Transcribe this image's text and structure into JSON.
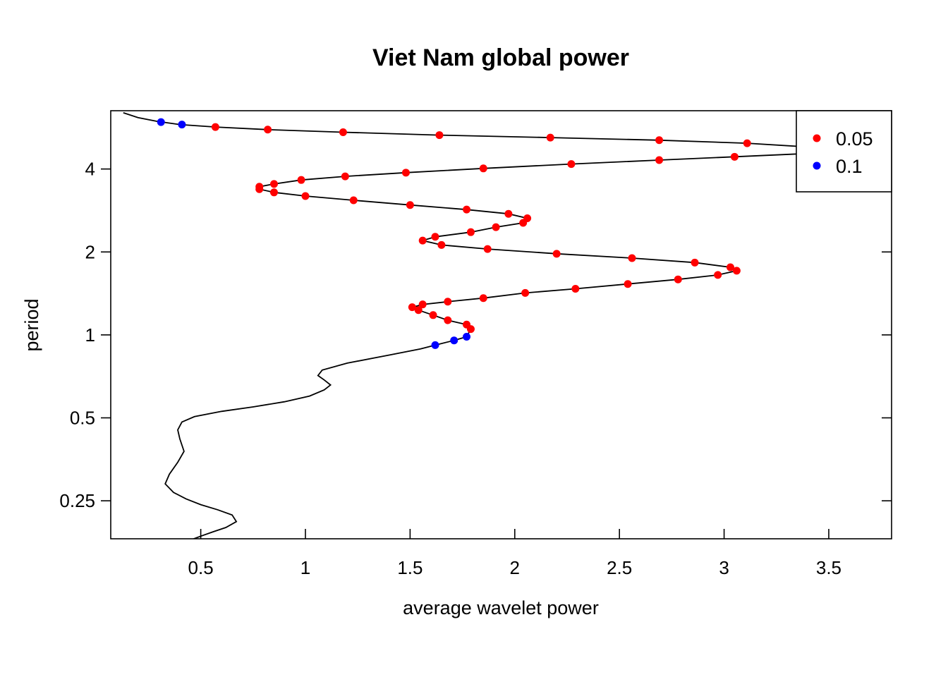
{
  "chart_data": {
    "type": "line",
    "title": "Viet Nam global power",
    "xlabel": "average wavelet power",
    "ylabel": "period",
    "xlim": [
      0.07,
      3.8
    ],
    "ylim": [
      0.182,
      6.51
    ],
    "y_log_scale": true,
    "grid": false,
    "legend_position": "top-right",
    "x_ticks": [
      {
        "value": 0.5,
        "label": "0.5"
      },
      {
        "value": 1,
        "label": "1"
      },
      {
        "value": 1.5,
        "label": "1.5"
      },
      {
        "value": 2,
        "label": "2"
      },
      {
        "value": 2.5,
        "label": "2.5"
      },
      {
        "value": 3,
        "label": "3"
      },
      {
        "value": 3.5,
        "label": "3.5"
      }
    ],
    "y_ticks": [
      {
        "value": 0.25,
        "label": "0.25"
      },
      {
        "value": 0.5,
        "label": "0.5"
      },
      {
        "value": 1,
        "label": "1"
      },
      {
        "value": 2,
        "label": "2"
      },
      {
        "value": 4,
        "label": "4"
      }
    ],
    "line": {
      "color": "#000000",
      "points": [
        [
          0.45,
          0.18
        ],
        [
          0.5,
          0.186
        ],
        [
          0.56,
          0.193
        ],
        [
          0.62,
          0.2
        ],
        [
          0.67,
          0.21
        ],
        [
          0.65,
          0.222
        ],
        [
          0.58,
          0.232
        ],
        [
          0.5,
          0.242
        ],
        [
          0.43,
          0.254
        ],
        [
          0.37,
          0.268
        ],
        [
          0.33,
          0.288
        ],
        [
          0.35,
          0.312
        ],
        [
          0.39,
          0.345
        ],
        [
          0.42,
          0.378
        ],
        [
          0.4,
          0.42
        ],
        [
          0.39,
          0.452
        ],
        [
          0.41,
          0.483
        ],
        [
          0.47,
          0.505
        ],
        [
          0.6,
          0.528
        ],
        [
          0.75,
          0.548
        ],
        [
          0.9,
          0.572
        ],
        [
          1.02,
          0.6
        ],
        [
          1.09,
          0.632
        ],
        [
          1.12,
          0.658
        ],
        [
          1.09,
          0.686
        ],
        [
          1.06,
          0.712
        ],
        [
          1.08,
          0.745
        ],
        [
          1.2,
          0.79
        ],
        [
          1.4,
          0.845
        ],
        [
          1.55,
          0.89
        ],
        [
          1.62,
          0.918
        ],
        [
          1.71,
          0.955
        ],
        [
          1.77,
          0.985
        ],
        [
          1.79,
          1.05
        ],
        [
          1.77,
          1.09
        ],
        [
          1.68,
          1.13
        ],
        [
          1.61,
          1.18
        ],
        [
          1.54,
          1.23
        ],
        [
          1.51,
          1.26
        ],
        [
          1.56,
          1.29
        ],
        [
          1.68,
          1.32
        ],
        [
          1.85,
          1.36
        ],
        [
          2.05,
          1.42
        ],
        [
          2.29,
          1.47
        ],
        [
          2.54,
          1.53
        ],
        [
          2.78,
          1.59
        ],
        [
          2.97,
          1.65
        ],
        [
          3.06,
          1.71
        ],
        [
          3.03,
          1.76
        ],
        [
          2.86,
          1.83
        ],
        [
          2.56,
          1.9
        ],
        [
          2.2,
          1.97
        ],
        [
          1.87,
          2.05
        ],
        [
          1.65,
          2.12
        ],
        [
          1.56,
          2.2
        ],
        [
          1.62,
          2.27
        ],
        [
          1.79,
          2.36
        ],
        [
          1.91,
          2.46
        ],
        [
          2.04,
          2.55
        ],
        [
          2.06,
          2.65
        ],
        [
          1.97,
          2.75
        ],
        [
          1.77,
          2.85
        ],
        [
          1.5,
          2.96
        ],
        [
          1.23,
          3.08
        ],
        [
          1.0,
          3.19
        ],
        [
          0.85,
          3.29
        ],
        [
          0.78,
          3.38
        ],
        [
          0.78,
          3.45
        ],
        [
          0.85,
          3.53
        ],
        [
          0.98,
          3.65
        ],
        [
          1.19,
          3.76
        ],
        [
          1.48,
          3.88
        ],
        [
          1.85,
          4.02
        ],
        [
          2.27,
          4.17
        ],
        [
          2.69,
          4.31
        ],
        [
          3.05,
          4.43
        ],
        [
          3.36,
          4.54
        ],
        [
          3.58,
          4.64
        ],
        [
          3.4,
          4.81
        ],
        [
          3.11,
          4.96
        ],
        [
          2.69,
          5.09
        ],
        [
          2.17,
          5.2
        ],
        [
          1.64,
          5.31
        ],
        [
          1.18,
          5.44
        ],
        [
          0.82,
          5.56
        ],
        [
          0.57,
          5.68
        ],
        [
          0.4,
          5.8
        ],
        [
          0.29,
          5.96
        ],
        [
          0.2,
          6.15
        ],
        [
          0.13,
          6.4
        ]
      ]
    },
    "series": [
      {
        "name": "0.05",
        "color": "#ff0000",
        "points": [
          [
            0.57,
            5.68
          ],
          [
            0.82,
            5.56
          ],
          [
            1.18,
            5.44
          ],
          [
            1.64,
            5.31
          ],
          [
            2.17,
            5.2
          ],
          [
            2.69,
            5.09
          ],
          [
            3.11,
            4.96
          ],
          [
            3.05,
            4.43
          ],
          [
            2.69,
            4.31
          ],
          [
            2.27,
            4.17
          ],
          [
            1.85,
            4.02
          ],
          [
            1.48,
            3.88
          ],
          [
            1.19,
            3.76
          ],
          [
            0.98,
            3.65
          ],
          [
            0.85,
            3.53
          ],
          [
            0.78,
            3.45
          ],
          [
            0.78,
            3.38
          ],
          [
            0.85,
            3.29
          ],
          [
            1.0,
            3.19
          ],
          [
            1.23,
            3.08
          ],
          [
            1.5,
            2.96
          ],
          [
            1.77,
            2.85
          ],
          [
            1.97,
            2.75
          ],
          [
            2.06,
            2.65
          ],
          [
            2.04,
            2.55
          ],
          [
            1.91,
            2.46
          ],
          [
            1.79,
            2.36
          ],
          [
            1.62,
            2.27
          ],
          [
            1.56,
            2.2
          ],
          [
            1.65,
            2.12
          ],
          [
            1.87,
            2.05
          ],
          [
            2.2,
            1.97
          ],
          [
            2.56,
            1.9
          ],
          [
            2.86,
            1.83
          ],
          [
            3.03,
            1.76
          ],
          [
            3.06,
            1.71
          ],
          [
            2.97,
            1.65
          ],
          [
            2.78,
            1.59
          ],
          [
            2.54,
            1.53
          ],
          [
            2.29,
            1.47
          ],
          [
            2.05,
            1.42
          ],
          [
            1.85,
            1.36
          ],
          [
            1.68,
            1.32
          ],
          [
            1.56,
            1.29
          ],
          [
            1.51,
            1.26
          ],
          [
            1.54,
            1.23
          ],
          [
            1.61,
            1.18
          ],
          [
            1.68,
            1.13
          ],
          [
            1.77,
            1.09
          ],
          [
            1.79,
            1.05
          ]
        ]
      },
      {
        "name": "0.1",
        "color": "#0000ff",
        "points": [
          [
            0.31,
            5.92
          ],
          [
            0.41,
            5.8
          ],
          [
            1.77,
            0.985
          ],
          [
            1.71,
            0.955
          ],
          [
            1.62,
            0.918
          ]
        ]
      }
    ]
  }
}
